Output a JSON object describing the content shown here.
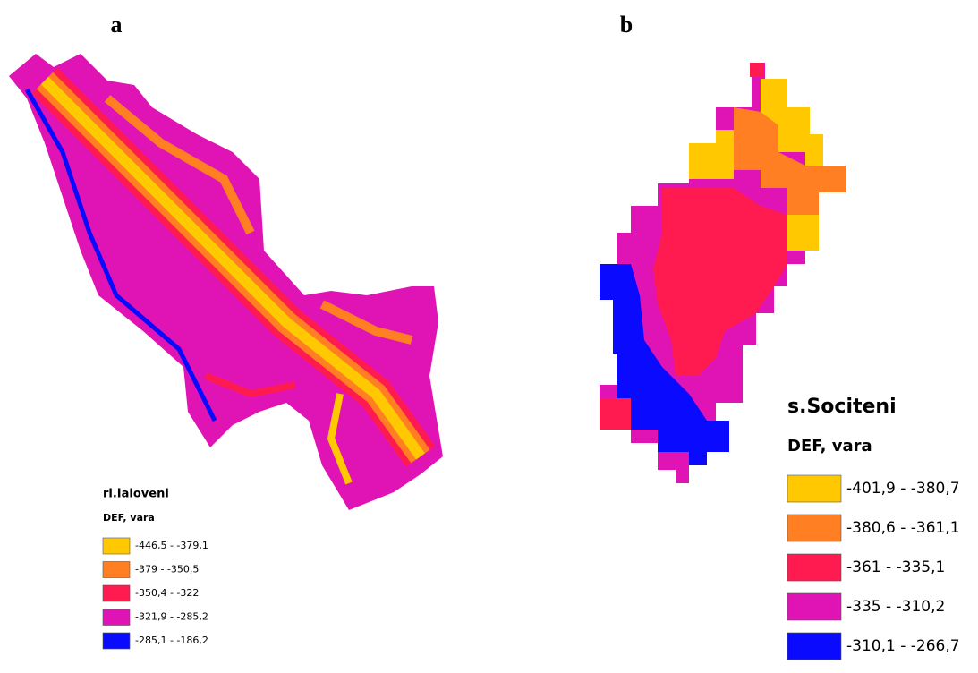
{
  "panels": [
    {
      "label": "a",
      "legend": {
        "title": "rl.Ialoveni",
        "subtitle": "DEF, vara",
        "items": [
          {
            "label": "-446,5 - -379,1",
            "color": "#ffc800"
          },
          {
            "label": "-379 - -350,5",
            "color": "#ff7f22"
          },
          {
            "label": "-350,4 - -322",
            "color": "#ff1a50"
          },
          {
            "label": "-321,9 - -285,2",
            "color": "#e014b4"
          },
          {
            "label": "-285,1 - -186,2",
            "color": "#0a0aff"
          }
        ]
      }
    },
    {
      "label": "b",
      "legend": {
        "title": "s.Sociteni",
        "subtitle": "DEF, vara",
        "items": [
          {
            "label": "-401,9 - -380,7",
            "color": "#ffc800"
          },
          {
            "label": "-380,6 - -361,1",
            "color": "#ff7f22"
          },
          {
            "label": "-361 - -335,1",
            "color": "#ff1a50"
          },
          {
            "label": "-335 - -310,2",
            "color": "#e014b4"
          },
          {
            "label": "-310,1 - -266,7",
            "color": "#0a0aff"
          }
        ]
      }
    }
  ]
}
